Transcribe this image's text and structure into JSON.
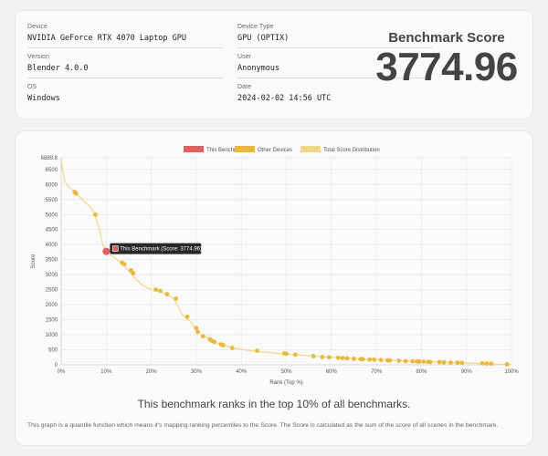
{
  "info": {
    "device": {
      "label": "Device",
      "value": "NVIDIA GeForce RTX 4070 Laptop GPU"
    },
    "version": {
      "label": "Version",
      "value": "Blender 4.0.0"
    },
    "os": {
      "label": "OS",
      "value": "Windows"
    },
    "device_type": {
      "label": "Device Type",
      "value": "GPU (OPTIX)"
    },
    "user": {
      "label": "User",
      "value": "Anonymous"
    },
    "date": {
      "label": "Date",
      "value": "2024-02-02 14:56 UTC"
    }
  },
  "benchmark": {
    "title": "Benchmark Score",
    "score": "3774.96"
  },
  "colors": {
    "this_benchmark": "#e06060",
    "other_devices": "#e8b93c",
    "distribution": "#f0d68a"
  },
  "chart_data": {
    "type": "scatter",
    "legend": [
      "This Benchmark",
      "Other Devices",
      "Total Score Distribution"
    ],
    "legend_position": "top",
    "xlabel": "Rank (Top %)",
    "ylabel": "Score",
    "xlim": [
      0,
      100
    ],
    "ylim": [
      0,
      6889.8
    ],
    "x_ticks": [
      "0%",
      "10%",
      "20%",
      "30%",
      "40%",
      "50%",
      "60%",
      "70%",
      "80%",
      "90%",
      "100%"
    ],
    "y_ticks": [
      "0",
      "500",
      "1000",
      "1500",
      "2000",
      "2500",
      "3000",
      "3500",
      "4000",
      "4500",
      "5000",
      "5500",
      "6000",
      "6500",
      "6889.8"
    ],
    "y_tick_values": [
      0,
      500,
      1000,
      1500,
      2000,
      2500,
      3000,
      3500,
      4000,
      4500,
      5000,
      5500,
      6000,
      6500,
      6889.8
    ],
    "grid": true,
    "distribution_curve": [
      [
        0,
        6889.8
      ],
      [
        0.3,
        6500
      ],
      [
        0.8,
        6100
      ],
      [
        1.5,
        5950
      ],
      [
        3,
        5750
      ],
      [
        5,
        5450
      ],
      [
        6.5,
        5250
      ],
      [
        7.5,
        5000
      ],
      [
        8.5,
        4500
      ],
      [
        9.2,
        4000
      ],
      [
        10,
        3775
      ],
      [
        11,
        3650
      ],
      [
        12,
        3550
      ],
      [
        14,
        3300
      ],
      [
        16,
        2950
      ],
      [
        18,
        2650
      ],
      [
        20,
        2500
      ],
      [
        22,
        2450
      ],
      [
        25,
        2200
      ],
      [
        27,
        1650
      ],
      [
        29,
        1400
      ],
      [
        30,
        1150
      ],
      [
        32,
        920
      ],
      [
        35,
        700
      ],
      [
        38,
        560
      ],
      [
        42,
        470
      ],
      [
        48,
        380
      ],
      [
        55,
        300
      ],
      [
        62,
        230
      ],
      [
        70,
        170
      ],
      [
        80,
        110
      ],
      [
        90,
        60
      ],
      [
        100,
        0
      ]
    ],
    "this_benchmark": {
      "x": 10,
      "y": 3774.96,
      "label": "This Benchmark (Score: 3774.96)"
    },
    "other_devices": [
      [
        3,
        5750
      ],
      [
        3.3,
        5700
      ],
      [
        7.6,
        5000
      ],
      [
        13.5,
        3400
      ],
      [
        14,
        3350
      ],
      [
        15.5,
        3150
      ],
      [
        16,
        3050
      ],
      [
        21,
        2500
      ],
      [
        22,
        2460
      ],
      [
        23.5,
        2350
      ],
      [
        25.5,
        2200
      ],
      [
        28,
        1600
      ],
      [
        30,
        1220
      ],
      [
        30.3,
        1100
      ],
      [
        31.5,
        950
      ],
      [
        33,
        850
      ],
      [
        33.5,
        800
      ],
      [
        34,
        760
      ],
      [
        35.5,
        680
      ],
      [
        36,
        650
      ],
      [
        38,
        560
      ],
      [
        43.5,
        470
      ],
      [
        49.5,
        380
      ],
      [
        50,
        370
      ],
      [
        52,
        340
      ],
      [
        56,
        290
      ],
      [
        58,
        260
      ],
      [
        59.5,
        250
      ],
      [
        61.5,
        235
      ],
      [
        62.5,
        225
      ],
      [
        63.5,
        215
      ],
      [
        65,
        200
      ],
      [
        66.5,
        190
      ],
      [
        67,
        185
      ],
      [
        68.5,
        175
      ],
      [
        69.5,
        170
      ],
      [
        71,
        160
      ],
      [
        72.5,
        150
      ],
      [
        73,
        145
      ],
      [
        75,
        135
      ],
      [
        76.5,
        125
      ],
      [
        78,
        115
      ],
      [
        79,
        110
      ],
      [
        79.5,
        108
      ],
      [
        80.5,
        104
      ],
      [
        81.5,
        98
      ],
      [
        82,
        95
      ],
      [
        84,
        88
      ],
      [
        85,
        82
      ],
      [
        86.5,
        76
      ],
      [
        88,
        70
      ],
      [
        89,
        65
      ],
      [
        93.5,
        50
      ],
      [
        94.5,
        45
      ],
      [
        95.5,
        40
      ],
      [
        99,
        15
      ]
    ]
  },
  "summary": {
    "rank_text": "This benchmark ranks in the top 10% of all benchmarks.",
    "description": "This graph is a quantile function which means it's mapping ranking percentiles to the Score. The Score is calculated as the sum of the score of all scenes in the benchmark."
  }
}
